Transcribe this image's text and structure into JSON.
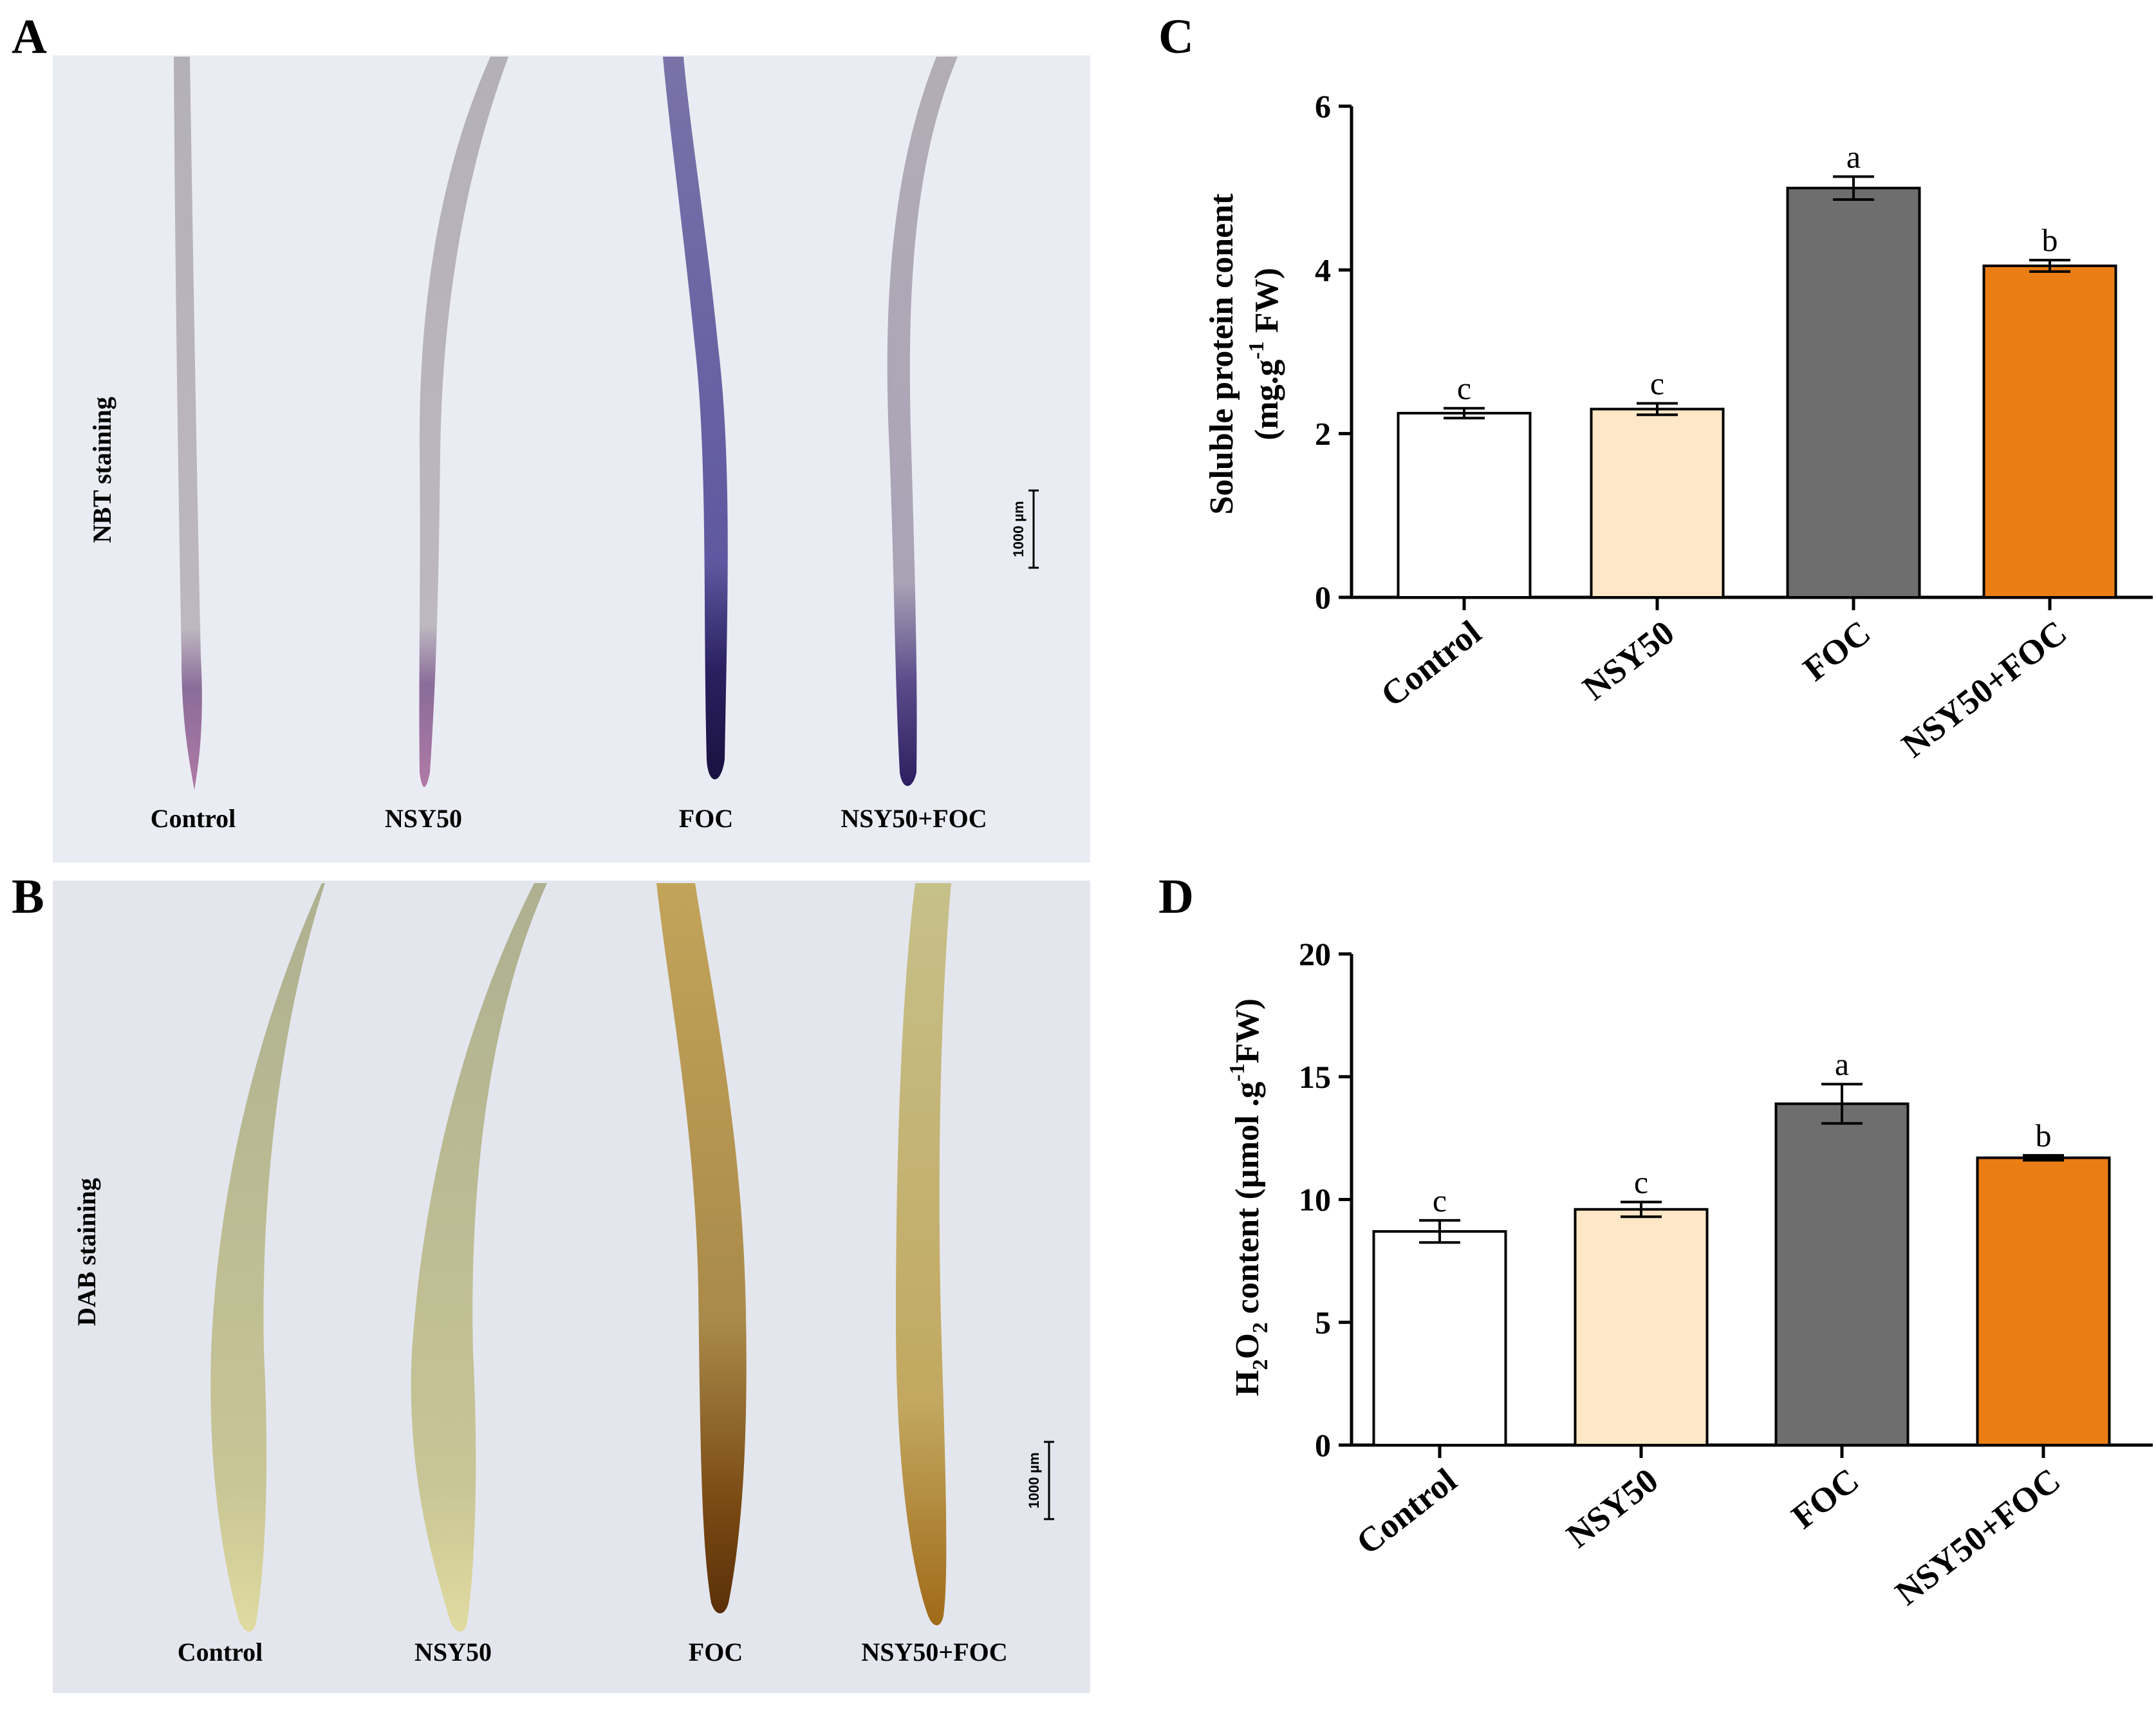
{
  "panels": {
    "A": {
      "letter": "A",
      "stain_label": "NBT  staining",
      "scale_bar": "1000 µm",
      "samples": [
        "Control",
        "NSY50",
        "FOC",
        "NSY50+FOC"
      ]
    },
    "B": {
      "letter": "B",
      "stain_label": "DAB  staining",
      "scale_bar": "1000 µm",
      "samples": [
        "Control",
        "NSY50",
        "FOC",
        "NSY50+FOC"
      ]
    },
    "C": {
      "letter": "C"
    },
    "D": {
      "letter": "D"
    }
  },
  "colors": {
    "control": "#ffffff",
    "nsy50": "#fde7c6",
    "foc": "#6e6e6e",
    "nsy50_foc": "#ea7e14",
    "nbt_bg": "#eaecf3",
    "dab_bg": "#e4e6ee"
  },
  "chart_data": [
    {
      "panel": "C",
      "type": "bar",
      "categories": [
        "Control",
        "NSY50",
        "FOC",
        "NSY50+FOC"
      ],
      "values": [
        2.25,
        2.3,
        5.0,
        4.05
      ],
      "errors": [
        0.06,
        0.07,
        0.14,
        0.07
      ],
      "significance": [
        "c",
        "c",
        "a",
        "b"
      ],
      "ylabel_line1": "Soluble protein conent",
      "ylabel_line2_pre": "(mg.g",
      "ylabel_line2_sup": "-1",
      "ylabel_line2_post": " FW)",
      "yticks": [
        "0",
        "2",
        "4",
        "6"
      ],
      "ylim": [
        0,
        6
      ]
    },
    {
      "panel": "D",
      "type": "bar",
      "categories": [
        "Control",
        "NSY50",
        "FOC",
        "NSY50+FOC"
      ],
      "values": [
        8.7,
        9.6,
        13.9,
        11.7
      ],
      "errors": [
        0.45,
        0.3,
        0.8,
        0.1
      ],
      "significance": [
        "c",
        "c",
        "a",
        "b"
      ],
      "ylabel_pre": "H",
      "ylabel_sub1": "2",
      "ylabel_mid": "O",
      "ylabel_sub2": "2",
      "ylabel_rest": " content (µmol .g",
      "ylabel_sup": "-1",
      "ylabel_end": "FW)",
      "yticks": [
        "0",
        "5",
        "10",
        "15",
        "20"
      ],
      "ylim": [
        0,
        20
      ]
    }
  ]
}
